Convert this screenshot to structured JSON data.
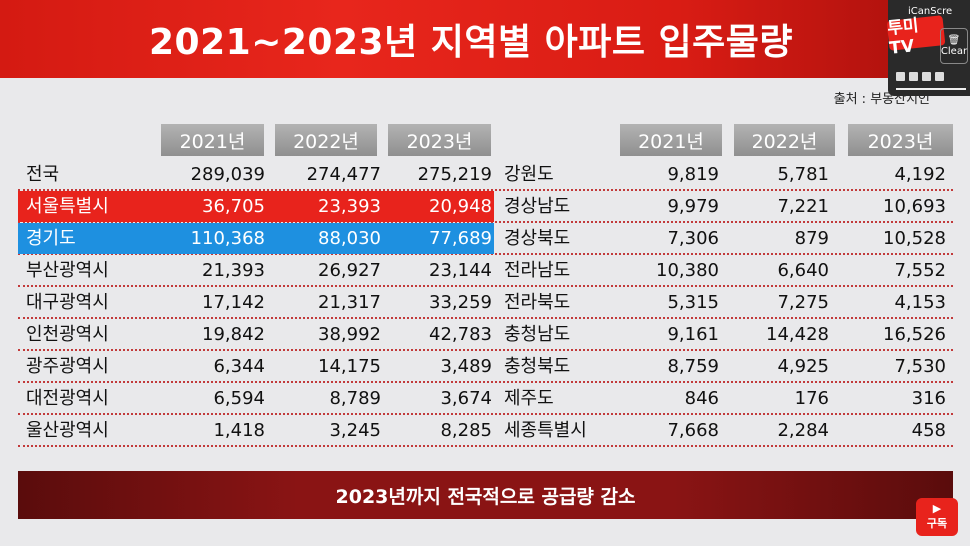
{
  "title": "2021~2023년 지역별 아파트 입주물량",
  "source": "출처 : 부동산지인",
  "headers": [
    "2021년",
    "2022년",
    "2023년"
  ],
  "left_rows": [
    {
      "name": "전국",
      "v2021": "289,039",
      "v2022": "274,477",
      "v2023": "275,219"
    },
    {
      "name": "서울특별시",
      "v2021": "36,705",
      "v2022": "23,393",
      "v2023": "20,948"
    },
    {
      "name": "경기도",
      "v2021": "110,368",
      "v2022": "88,030",
      "v2023": "77,689"
    },
    {
      "name": "부산광역시",
      "v2021": "21,393",
      "v2022": "26,927",
      "v2023": "23,144"
    },
    {
      "name": "대구광역시",
      "v2021": "17,142",
      "v2022": "21,317",
      "v2023": "33,259"
    },
    {
      "name": "인천광역시",
      "v2021": "19,842",
      "v2022": "38,992",
      "v2023": "42,783"
    },
    {
      "name": "광주광역시",
      "v2021": "6,344",
      "v2022": "14,175",
      "v2023": "3,489"
    },
    {
      "name": "대전광역시",
      "v2021": "6,594",
      "v2022": "8,789",
      "v2023": "3,674"
    },
    {
      "name": "울산광역시",
      "v2021": "1,418",
      "v2022": "3,245",
      "v2023": "8,285"
    }
  ],
  "right_rows": [
    {
      "name": "강원도",
      "v2021": "9,819",
      "v2022": "5,781",
      "v2023": "4,192"
    },
    {
      "name": "경상남도",
      "v2021": "9,979",
      "v2022": "7,221",
      "v2023": "10,693"
    },
    {
      "name": "경상북도",
      "v2021": "7,306",
      "v2022": "879",
      "v2023": "10,528"
    },
    {
      "name": "전라남도",
      "v2021": "10,380",
      "v2022": "6,640",
      "v2023": "7,552"
    },
    {
      "name": "전라북도",
      "v2021": "5,315",
      "v2022": "7,275",
      "v2023": "4,153"
    },
    {
      "name": "충청남도",
      "v2021": "9,161",
      "v2022": "14,428",
      "v2023": "16,526"
    },
    {
      "name": "충청북도",
      "v2021": "8,759",
      "v2022": "4,925",
      "v2023": "7,530"
    },
    {
      "name": "제주도",
      "v2021": "846",
      "v2022": "176",
      "v2023": "316"
    },
    {
      "name": "세종특별시",
      "v2021": "7,668",
      "v2022": "2,284",
      "v2023": "458"
    }
  ],
  "highlights": {
    "seoul_color": "#e8231c",
    "gyeonggi_color": "#1e90e0"
  },
  "banner": "2023년까지 전국적으로 공급량 감소",
  "overlay": {
    "app": "iCanScre",
    "logo": "투미TV",
    "clear": "Clear"
  },
  "subscribe": {
    "label": "구독",
    "icon": "play-icon"
  }
}
